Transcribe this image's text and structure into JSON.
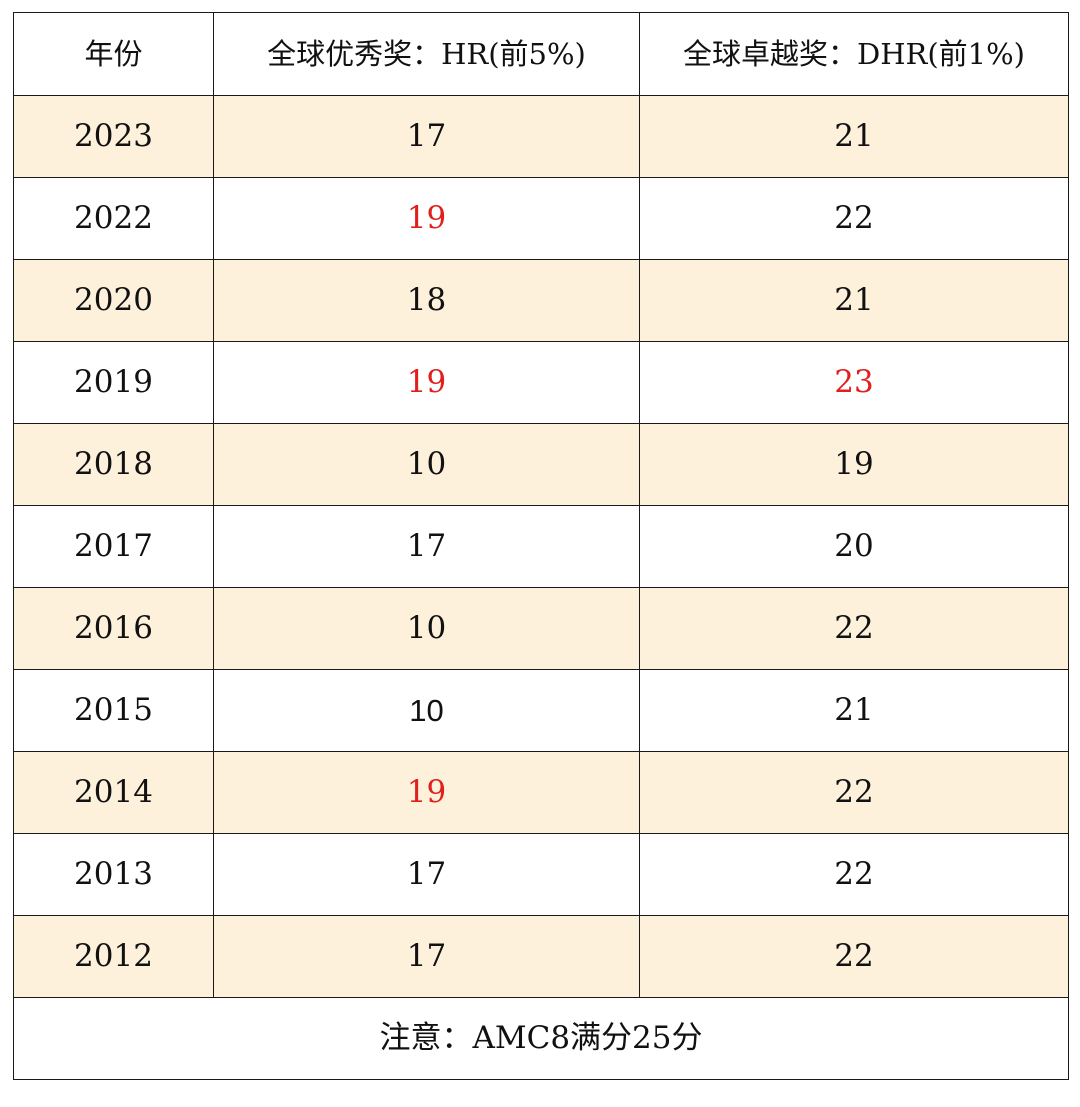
{
  "table": {
    "headers": {
      "year": "年份",
      "hr": "全球优秀奖：HR(前5%)",
      "dhr": "全球卓越奖：DHR(前1%)"
    },
    "rows": [
      {
        "year": "2023",
        "hr": "17",
        "dhr": "21"
      },
      {
        "year": "2022",
        "hr": "19",
        "dhr": "22"
      },
      {
        "year": "2020",
        "hr": "18",
        "dhr": "21"
      },
      {
        "year": "2019",
        "hr": "19",
        "dhr": "23"
      },
      {
        "year": "2018",
        "hr": "10",
        "dhr": "19"
      },
      {
        "year": "2017",
        "hr": "17",
        "dhr": "20"
      },
      {
        "year": "2016",
        "hr": "10",
        "dhr": "22"
      },
      {
        "year": "2015",
        "hr": "10",
        "dhr": "21"
      },
      {
        "year": "2014",
        "hr": "19",
        "dhr": "22"
      },
      {
        "year": "2013",
        "hr": "17",
        "dhr": "22"
      },
      {
        "year": "2012",
        "hr": "17",
        "dhr": "22"
      }
    ],
    "note": "注意：AMC8满分25分"
  },
  "colors": {
    "shaded_row": "#fdf1dc",
    "highlight_red": "#e0201c",
    "border": "#1a1a1a"
  }
}
